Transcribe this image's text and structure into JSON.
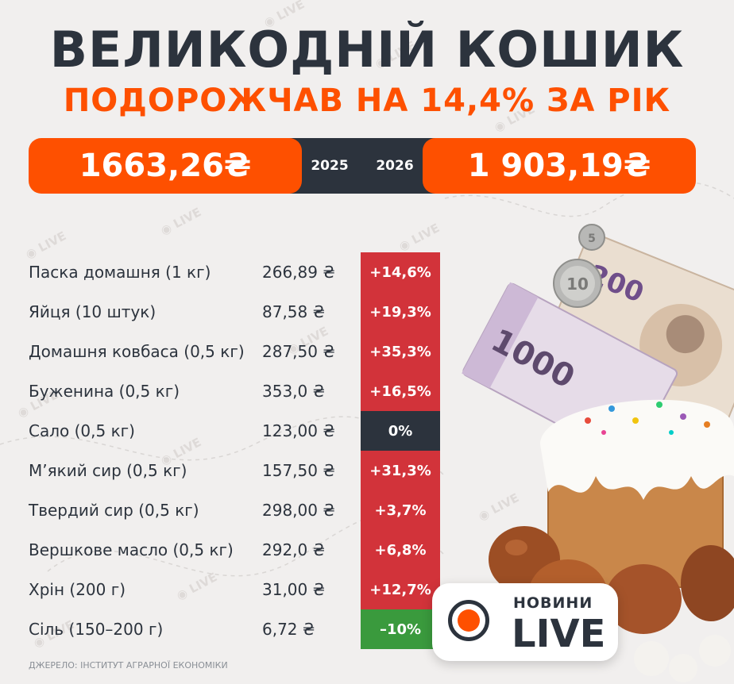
{
  "header": {
    "title": "ВЕЛИКОДНІЙ КОШИК",
    "subtitle": "ПОДОРОЖЧАВ НА 14,4% ЗА РІК"
  },
  "totals": {
    "price_2025": "1663,26₴",
    "year_2025": "2025",
    "year_2026": "2026",
    "price_2026": "1 903,19₴"
  },
  "items": [
    {
      "name": "Паска домашня (1 кг)",
      "price": "266,89 ₴",
      "change": "+14,6%"
    },
    {
      "name": "Яйця (10 штук)",
      "price": "87,58 ₴",
      "change": "+19,3%"
    },
    {
      "name": "Домашня ковбаса (0,5 кг)",
      "price": "287,50 ₴",
      "change": "+35,3%"
    },
    {
      "name": "Буженина (0,5 кг)",
      "price": "353,0 ₴",
      "change": "+16,5%"
    },
    {
      "name": "Сало (0,5 кг)",
      "price": "123,00 ₴",
      "change": "0%"
    },
    {
      "name": "М’який сир (0,5 кг)",
      "price": "157,50 ₴",
      "change": "+31,3%"
    },
    {
      "name": "Твердий сир (0,5 кг)",
      "price": "298,00 ₴",
      "change": "+3,7%"
    },
    {
      "name": "Вершкове масло (0,5 кг)",
      "price": "292,0 ₴",
      "change": "+6,8%"
    },
    {
      "name": "Хрін (200 г)",
      "price": "31,00 ₴",
      "change": "+12,7%"
    },
    {
      "name": "Сіль (150–200 г)",
      "price": "6,72 ₴",
      "change": "–10%"
    }
  ],
  "colors": {
    "increase": "#d2333a",
    "neutral": "#2c333d",
    "decrease": "#3a9a3d",
    "accent": "#fe5000"
  },
  "source": "ДЖЕРЕЛО: ІНСТИТУТ АГРАРНОЇ ЕКОНОМІКИ",
  "logo": {
    "top": "НОВИНИ",
    "main": "LIVE",
    "watermark": "LIVE"
  },
  "illustration": {
    "banknote_1": "1000",
    "banknote_2": "200",
    "coin_1": "10",
    "coin_2": "5"
  }
}
